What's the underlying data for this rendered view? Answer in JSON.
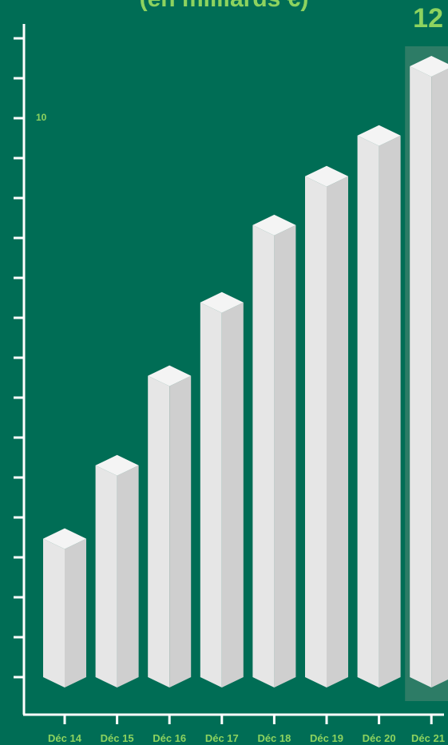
{
  "chart_data": {
    "type": "bar",
    "title": "(en milliards €)",
    "categories": [
      "Déc 14",
      "Déc 15",
      "Déc 16",
      "Déc 17",
      "Déc 18",
      "Déc 19",
      "Déc 20",
      "Déc 21"
    ],
    "values": [
      3.4,
      5.2,
      7.4,
      9.2,
      11.1,
      12.3,
      13.3,
      15.0
    ],
    "annotations": [
      "12",
      "10"
    ],
    "grid": false,
    "legend": "none"
  },
  "colors": {
    "background": "#006d55",
    "axis": "#ffffff",
    "label": "#8dd35f",
    "bar_front": "#e6e6e6",
    "bar_side": "#cfcfcf",
    "bar_top": "#f4f4f4",
    "highlight_bg": "#2d7c66"
  }
}
